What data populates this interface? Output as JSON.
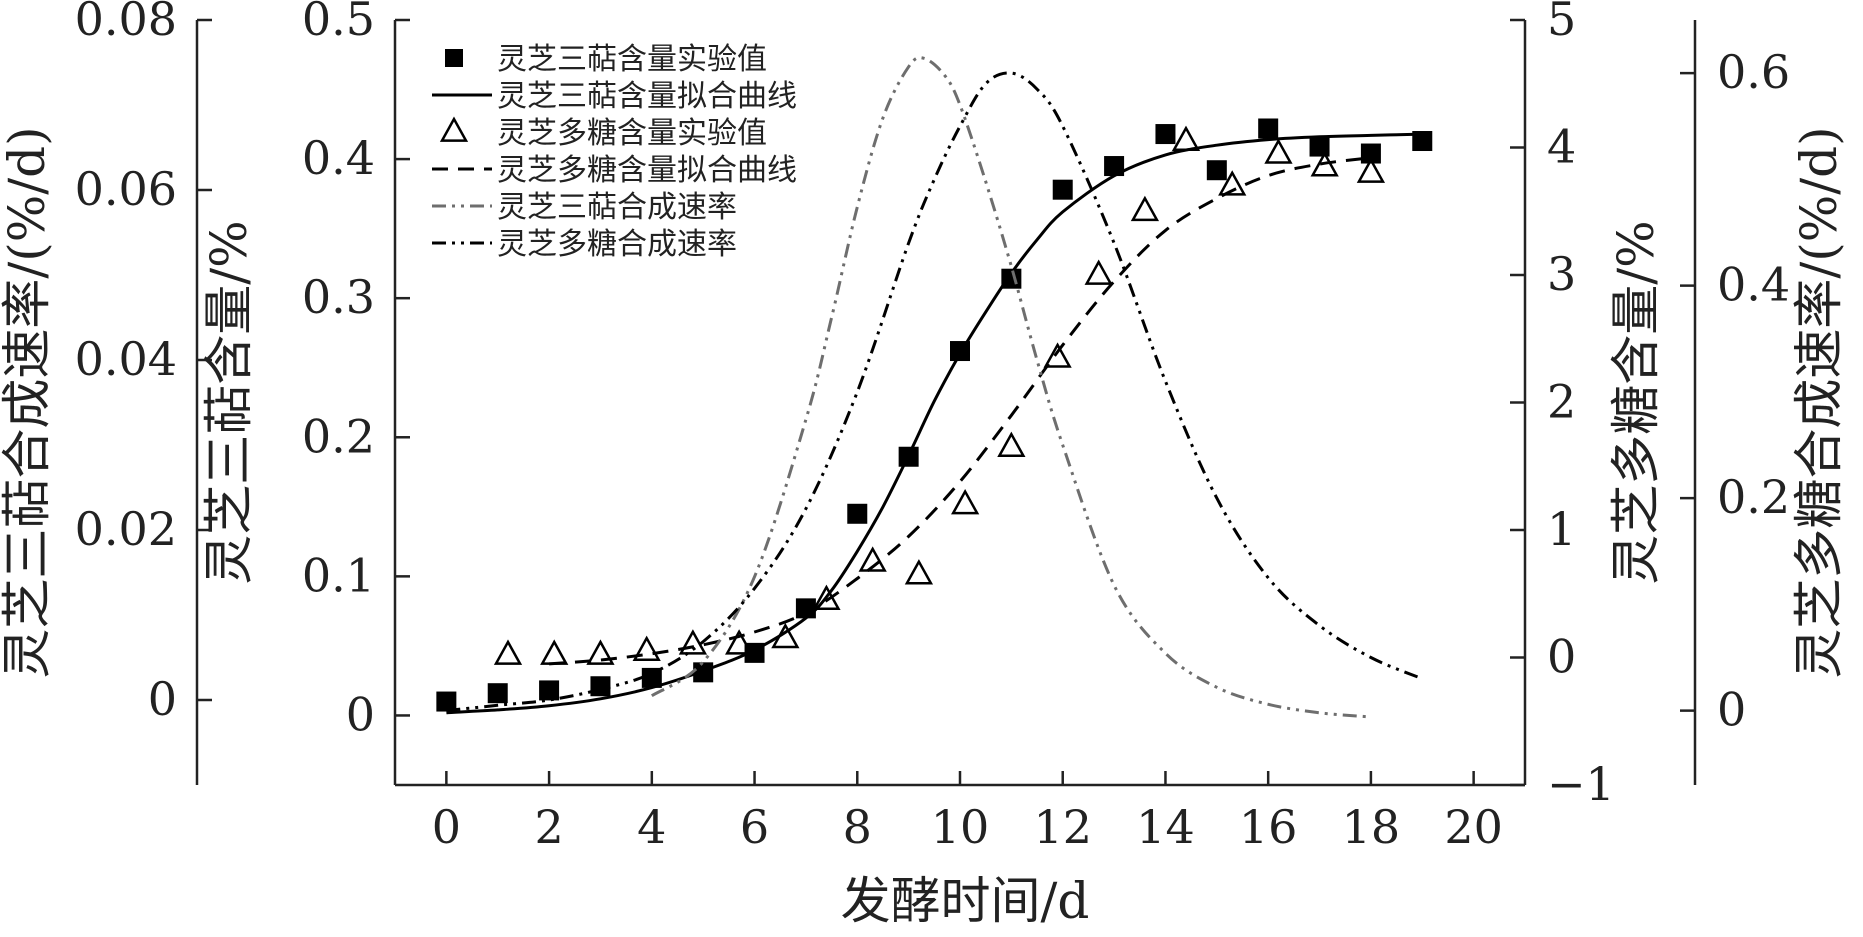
{
  "chart_data": {
    "type": "line",
    "xlabel": "发酵时间/d",
    "xlim": [
      -1,
      21
    ],
    "x_ticks": [
      0,
      2,
      4,
      6,
      8,
      10,
      12,
      14,
      16,
      18,
      20
    ],
    "axes": {
      "left_outer": {
        "label": "灵芝三萜合成速率/(%/d)",
        "ylim": [
          -0.01,
          0.08
        ],
        "ticks": [
          "0",
          "0.02",
          "0.04",
          "0.06",
          "0.08"
        ],
        "tick_values": [
          0,
          0.02,
          0.04,
          0.06,
          0.08
        ]
      },
      "left_inner": {
        "label": "灵芝三萜含量/%",
        "ylim": [
          -0.05,
          0.5
        ],
        "ticks": [
          "0",
          "0.1",
          "0.2",
          "0.3",
          "0.4",
          "0.5"
        ],
        "tick_values": [
          0,
          0.1,
          0.2,
          0.3,
          0.4,
          0.5
        ]
      },
      "right_inner": {
        "label": "灵芝多糖含量/%",
        "ylim": [
          -1,
          5
        ],
        "ticks": [
          "−1",
          "0",
          "1",
          "2",
          "3",
          "4",
          "5"
        ],
        "tick_values": [
          -1,
          0,
          1,
          2,
          3,
          4,
          5
        ]
      },
      "right_outer": {
        "label": "灵芝多糖合成速率/(%/d)",
        "ylim": [
          -0.07,
          0.65
        ],
        "ticks": [
          "0",
          "0.2",
          "0.4",
          "0.6"
        ],
        "tick_values": [
          0,
          0.2,
          0.4,
          0.6
        ]
      }
    },
    "legend": {
      "position": "top-left",
      "entries": [
        "灵芝三萜含量实验值",
        "灵芝三萜含量拟合曲线",
        "灵芝多糖含量实验值",
        "灵芝多糖含量拟合曲线",
        "灵芝三萜合成速率",
        "灵芝多糖合成速率"
      ]
    },
    "series": [
      {
        "name": "灵芝三萜含量实验值",
        "kind": "scatter",
        "marker": "filled-square",
        "axis": "left_inner",
        "color": "#000000",
        "x": [
          0,
          1,
          2,
          3,
          4,
          5,
          6,
          7,
          8,
          9,
          10,
          11,
          12,
          13,
          14,
          15,
          16,
          17,
          18,
          19
        ],
        "y": [
          0.01,
          0.016,
          0.018,
          0.021,
          0.027,
          0.031,
          0.045,
          0.077,
          0.145,
          0.186,
          0.262,
          0.314,
          0.378,
          0.395,
          0.418,
          0.392,
          0.422,
          0.409,
          0.404,
          0.413
        ]
      },
      {
        "name": "灵芝三萜含量拟合曲线",
        "kind": "line",
        "dash": "solid",
        "axis": "left_inner",
        "color": "#000000",
        "x": [
          0,
          1,
          2,
          3,
          4,
          5,
          6,
          7,
          7.5,
          8,
          8.5,
          9,
          9.5,
          10,
          10.5,
          11,
          11.5,
          12,
          13,
          14,
          15,
          16,
          17,
          18,
          19
        ],
        "y": [
          0.002,
          0.004,
          0.007,
          0.012,
          0.02,
          0.032,
          0.047,
          0.07,
          0.09,
          0.118,
          0.15,
          0.187,
          0.226,
          0.26,
          0.29,
          0.318,
          0.342,
          0.362,
          0.388,
          0.403,
          0.41,
          0.414,
          0.416,
          0.417,
          0.418
        ]
      },
      {
        "name": "灵芝多糖含量实验值",
        "kind": "scatter",
        "marker": "open-triangle",
        "axis": "right_inner",
        "color": "#000000",
        "x": [
          1.2,
          2.1,
          3,
          3.9,
          4.8,
          5.7,
          6.6,
          7.4,
          8.3,
          9.2,
          10.1,
          11,
          11.9,
          12.7,
          13.6,
          14.4,
          15.3,
          16.2,
          17.1,
          18
        ],
        "y": [
          0.02,
          0.02,
          0.02,
          0.05,
          0.1,
          0.1,
          0.15,
          0.45,
          0.75,
          0.65,
          1.2,
          1.65,
          2.35,
          3,
          3.5,
          4.05,
          3.7,
          3.95,
          3.85,
          3.8
        ]
      },
      {
        "name": "灵芝多糖含量拟合曲线",
        "kind": "line",
        "dash": "dashed",
        "axis": "right_inner",
        "color": "#000000",
        "x": [
          2,
          3,
          4,
          5,
          6,
          7,
          8,
          9,
          10,
          11,
          12,
          13,
          14,
          15,
          16,
          17,
          18
        ],
        "y": [
          -0.05,
          -0.02,
          0.03,
          0.1,
          0.2,
          0.35,
          0.62,
          0.95,
          1.38,
          1.9,
          2.45,
          2.95,
          3.35,
          3.6,
          3.78,
          3.87,
          3.92
        ]
      },
      {
        "name": "灵芝三萜合成速率",
        "kind": "line",
        "dash": "dash-dot-dot",
        "axis": "left_outer",
        "color": "#6e6e6e",
        "x": [
          4,
          5,
          6,
          7,
          7.5,
          8,
          8.5,
          9,
          9.3,
          9.7,
          10,
          10.5,
          11,
          11.5,
          12,
          13,
          14,
          15,
          16,
          17,
          18
        ],
        "y": [
          0.0005,
          0.0045,
          0.0145,
          0.033,
          0.045,
          0.058,
          0.0685,
          0.0745,
          0.0755,
          0.0735,
          0.07,
          0.061,
          0.051,
          0.04,
          0.03,
          0.0135,
          0.0055,
          0.0015,
          -0.0005,
          -0.0015,
          -0.002
        ]
      },
      {
        "name": "灵芝多糖合成速率",
        "kind": "line",
        "dash": "dash-dot-dot",
        "axis": "right_outer",
        "color": "#000000",
        "x": [
          0,
          1,
          2,
          3,
          4,
          5,
          6,
          7,
          8,
          9,
          9.5,
          10,
          10.5,
          11,
          11.5,
          12,
          13,
          14,
          15,
          16,
          17,
          18,
          19
        ],
        "y": [
          0.0,
          0.005,
          0.01,
          0.02,
          0.035,
          0.065,
          0.115,
          0.19,
          0.3,
          0.44,
          0.5,
          0.55,
          0.59,
          0.6,
          0.585,
          0.55,
          0.44,
          0.31,
          0.2,
          0.125,
          0.08,
          0.05,
          0.03
        ]
      }
    ]
  }
}
